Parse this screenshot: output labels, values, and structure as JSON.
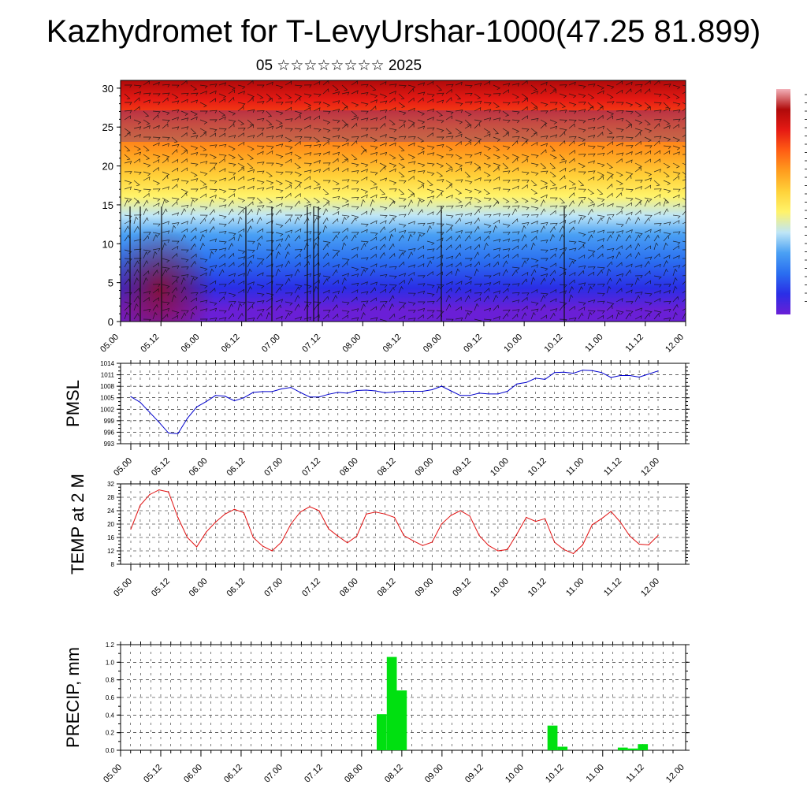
{
  "title": "Kazhydromet for T-LevyUrshar-1000(47.25 81.899)",
  "subtitle": "05 ☆☆☆☆☆☆☆☆ 2025",
  "chart_data": [
    {
      "type": "heatmap",
      "name": "vertical cross-section",
      "x_ticks": [
        "05.00",
        "05.12",
        "06.00",
        "06.12",
        "07.00",
        "07.12",
        "08.00",
        "08.12",
        "09.00",
        "09.12",
        "10.00",
        "10.12",
        "11.00",
        "11.12",
        "12.00"
      ],
      "ylim": [
        0,
        31
      ],
      "y_ticks": [
        0,
        5,
        10,
        15,
        20,
        25,
        30
      ],
      "colormap": [
        "#6a1fd6",
        "#2a2ee6",
        "#2a6ef0",
        "#4aa0f4",
        "#bfe6f6",
        "#fff36a",
        "#ffd23a",
        "#ff9d1e",
        "#ff5e14",
        "#e61a14",
        "#b00a0a"
      ],
      "overlay": "wind barbs",
      "colorbar_top": "#f2b0b8"
    },
    {
      "type": "line",
      "ylabel": "PMSL",
      "ylim": [
        993,
        1014
      ],
      "y_ticks": [
        993,
        996,
        999,
        1002,
        1005,
        1008,
        1011,
        1014
      ],
      "x_ticks": [
        "05.00",
        "05.12",
        "06.00",
        "06.12",
        "07.00",
        "07.12",
        "08.00",
        "08.12",
        "09.00",
        "09.12",
        "10.00",
        "10.12",
        "11.00",
        "11.12",
        "12.00"
      ],
      "color": "#0000cc",
      "step_hours": 3,
      "values": [
        1005.3,
        1003.8,
        1001.2,
        998.6,
        995.8,
        995.6,
        999.6,
        1002.6,
        1004.0,
        1005.6,
        1005.4,
        1004.2,
        1005.0,
        1006.4,
        1006.6,
        1006.6,
        1007.3,
        1007.7,
        1006.4,
        1005.2,
        1005.2,
        1005.9,
        1006.4,
        1006.2,
        1006.9,
        1007.0,
        1006.8,
        1006.3,
        1006.5,
        1006.7,
        1006.7,
        1006.7,
        1007.1,
        1008.0,
        1006.8,
        1005.6,
        1005.6,
        1006.2,
        1006.0,
        1006.0,
        1006.7,
        1008.6,
        1009.0,
        1010.1,
        1009.8,
        1011.6,
        1011.7,
        1011.4,
        1012.2,
        1012.1,
        1011.6,
        1010.3,
        1010.8,
        1010.8,
        1010.4,
        1011.2,
        1012.0
      ]
    },
    {
      "type": "line",
      "ylabel": "TEMP at 2 M",
      "ylim": [
        8,
        32
      ],
      "y_ticks": [
        8,
        12,
        16,
        20,
        24,
        28,
        32
      ],
      "x_ticks": [
        "05.00",
        "05.12",
        "06.00",
        "06.12",
        "07.00",
        "07.12",
        "08.00",
        "08.12",
        "09.00",
        "09.12",
        "10.00",
        "10.12",
        "11.00",
        "11.12",
        "12.00"
      ],
      "color": "#e01010",
      "step_hours": 3,
      "values": [
        18.5,
        25.6,
        28.8,
        30.2,
        29.6,
        22.0,
        16.0,
        13.2,
        17.6,
        20.6,
        23.0,
        24.4,
        23.4,
        16.0,
        13.4,
        12.0,
        14.6,
        20.0,
        23.6,
        25.2,
        24.0,
        18.6,
        16.4,
        14.4,
        16.4,
        23.0,
        23.6,
        23.0,
        22.0,
        16.6,
        15.0,
        13.6,
        14.6,
        20.0,
        22.6,
        24.0,
        22.4,
        16.6,
        13.6,
        12.0,
        12.4,
        17.0,
        22.0,
        20.8,
        21.6,
        14.6,
        12.4,
        11.2,
        13.8,
        19.8,
        21.6,
        23.8,
        20.6,
        16.4,
        14.0,
        13.8,
        16.6
      ]
    },
    {
      "type": "bar",
      "ylabel": "PRECIP, mm",
      "ylim": [
        0,
        1.2
      ],
      "y_ticks": [
        "0.0",
        "0.2",
        "0.4",
        "0.6",
        "0.8",
        "1.0",
        "1.2"
      ],
      "x_ticks": [
        "05.00",
        "05.12",
        "06.00",
        "06.12",
        "07.00",
        "07.12",
        "08.00",
        "08.12",
        "09.00",
        "09.12",
        "10.00",
        "10.12",
        "11.00",
        "11.12",
        "12.00"
      ],
      "color": "#00e010",
      "step_hours": 3,
      "values": [
        0,
        0,
        0,
        0,
        0,
        0,
        0,
        0,
        0,
        0,
        0,
        0,
        0,
        0,
        0,
        0,
        0,
        0,
        0,
        0,
        0,
        0,
        0,
        0,
        0,
        0,
        0.41,
        1.06,
        0.68,
        0,
        0,
        0,
        0,
        0,
        0,
        0,
        0,
        0,
        0,
        0,
        0,
        0,
        0,
        0.28,
        0.04,
        0,
        0,
        0,
        0,
        0,
        0.03,
        0.02,
        0.07,
        0,
        0,
        0
      ]
    }
  ]
}
